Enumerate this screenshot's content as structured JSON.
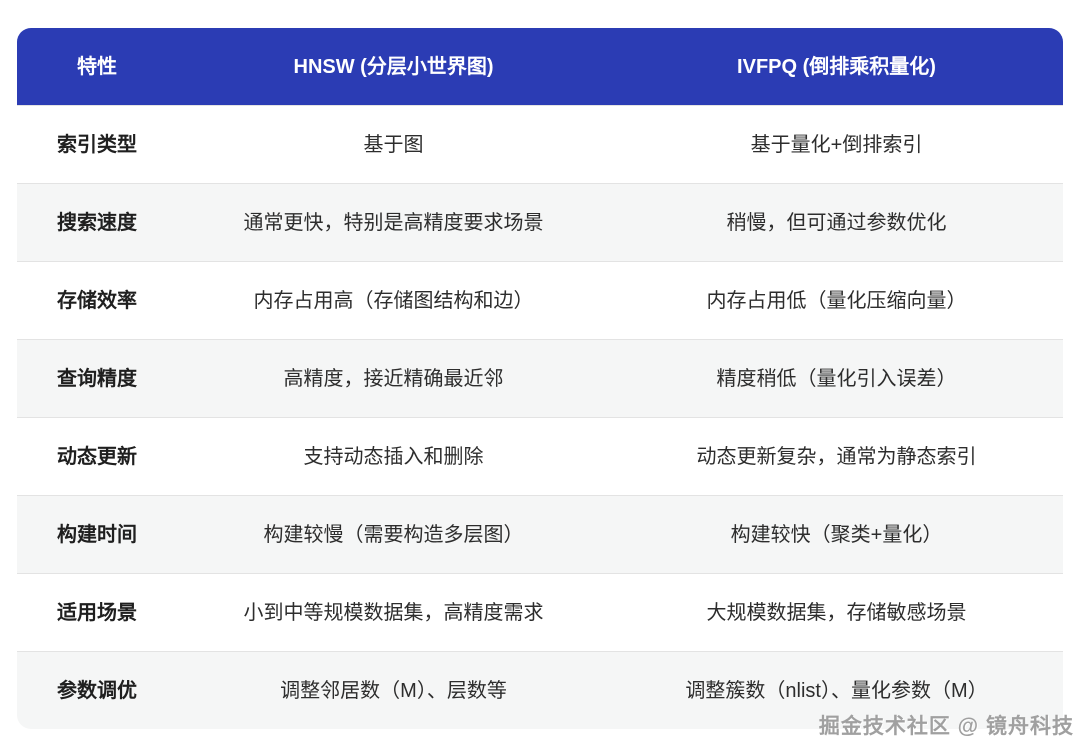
{
  "colors": {
    "header_bg": "#2b3cb4",
    "row_alt_bg": "#f5f6f6",
    "divider": "#e3e3e3",
    "watermark_text_color": "#a0a0a0"
  },
  "table": {
    "headers": [
      {
        "label": "特性"
      },
      {
        "label": "HNSW (分层小世界图)"
      },
      {
        "label": "IVFPQ (倒排乘积量化)"
      }
    ],
    "rows": [
      {
        "feature": "索引类型",
        "hnsw": "基于图",
        "ivfpq": "基于量化+倒排索引"
      },
      {
        "feature": "搜索速度",
        "hnsw": "通常更快，特别是高精度要求场景",
        "ivfpq": "稍慢，但可通过参数优化"
      },
      {
        "feature": "存储效率",
        "hnsw": "内存占用高（存储图结构和边）",
        "ivfpq": "内存占用低（量化压缩向量）"
      },
      {
        "feature": "查询精度",
        "hnsw": "高精度，接近精确最近邻",
        "ivfpq": "精度稍低（量化引入误差）"
      },
      {
        "feature": "动态更新",
        "hnsw": "支持动态插入和删除",
        "ivfpq": "动态更新复杂，通常为静态索引"
      },
      {
        "feature": "构建时间",
        "hnsw": "构建较慢（需要构造多层图）",
        "ivfpq": "构建较快（聚类+量化）"
      },
      {
        "feature": "适用场景",
        "hnsw": "小到中等规模数据集，高精度需求",
        "ivfpq": "大规模数据集，存储敏感场景"
      },
      {
        "feature": "参数调优",
        "hnsw": "调整邻居数（M）、层数等",
        "ivfpq": "调整簇数（nlist）、量化参数（M）"
      }
    ]
  },
  "watermark": "掘金技术社区 @ 镜舟科技"
}
